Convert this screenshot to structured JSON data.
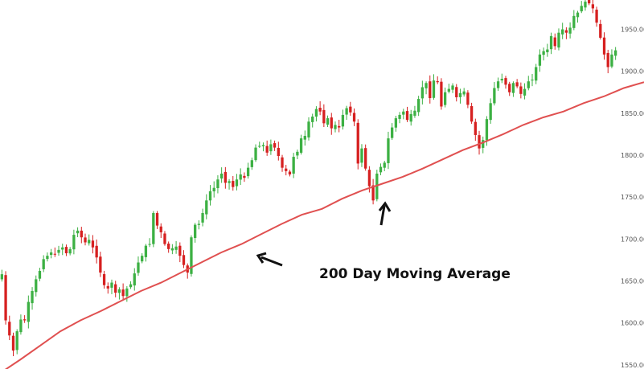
{
  "chart_data": {
    "type": "candlestick",
    "title": "",
    "xlabel": "",
    "ylabel": "",
    "ylim": [
      1545,
      1985
    ],
    "y_ticks": [
      "1550.00",
      "1600.00",
      "1650.00",
      "1700.00",
      "1750.00",
      "1800.00",
      "1850.00",
      "1900.00",
      "1950.00"
    ],
    "grid": false,
    "colors": {
      "up": "#3cb043",
      "down": "#d62020",
      "ma": "#e05050",
      "arrow": "#111111"
    },
    "close_series": [
      1658,
      1603,
      1585,
      1567,
      1590,
      1604,
      1603,
      1625,
      1638,
      1652,
      1662,
      1676,
      1680,
      1684,
      1682,
      1687,
      1690,
      1683,
      1688,
      1705,
      1710,
      1702,
      1696,
      1699,
      1690,
      1678,
      1660,
      1645,
      1641,
      1648,
      1636,
      1640,
      1632,
      1641,
      1646,
      1659,
      1672,
      1680,
      1692,
      1694,
      1731,
      1716,
      1708,
      1694,
      1688,
      1689,
      1691,
      1680,
      1669,
      1660,
      1702,
      1717,
      1718,
      1731,
      1746,
      1757,
      1761,
      1771,
      1778,
      1767,
      1769,
      1762,
      1771,
      1777,
      1773,
      1785,
      1794,
      1809,
      1811,
      1812,
      1803,
      1813,
      1809,
      1799,
      1785,
      1781,
      1777,
      1798,
      1804,
      1820,
      1823,
      1840,
      1846,
      1855,
      1852,
      1838,
      1844,
      1832,
      1836,
      1833,
      1848,
      1856,
      1851,
      1840,
      1790,
      1808,
      1784,
      1763,
      1746,
      1778,
      1786,
      1791,
      1820,
      1833,
      1844,
      1848,
      1852,
      1842,
      1849,
      1853,
      1867,
      1881,
      1886,
      1868,
      1889,
      1887,
      1858,
      1875,
      1879,
      1883,
      1869,
      1874,
      1876,
      1860,
      1840,
      1824,
      1808,
      1818,
      1843,
      1862,
      1880,
      1888,
      1891,
      1884,
      1875,
      1886,
      1882,
      1873,
      1879,
      1888,
      1890,
      1905,
      1920,
      1924,
      1926,
      1942,
      1930,
      1946,
      1950,
      1946,
      1952,
      1966,
      1970,
      1978,
      1983,
      1981,
      1975,
      1958,
      1940,
      1920,
      1905,
      1920,
      1925
    ],
    "moving_average": {
      "name": "200 Day Moving Average",
      "values": [
        1540,
        1556,
        1573,
        1590,
        1603,
        1614,
        1626,
        1638,
        1648,
        1660,
        1672,
        1684,
        1694,
        1706,
        1718,
        1729,
        1736,
        1748,
        1758,
        1766,
        1774,
        1784,
        1795,
        1806,
        1815,
        1825,
        1836,
        1845,
        1852,
        1862,
        1870,
        1880,
        1887
      ]
    },
    "annotations": [
      {
        "text": "200 Day Moving Average"
      }
    ]
  }
}
